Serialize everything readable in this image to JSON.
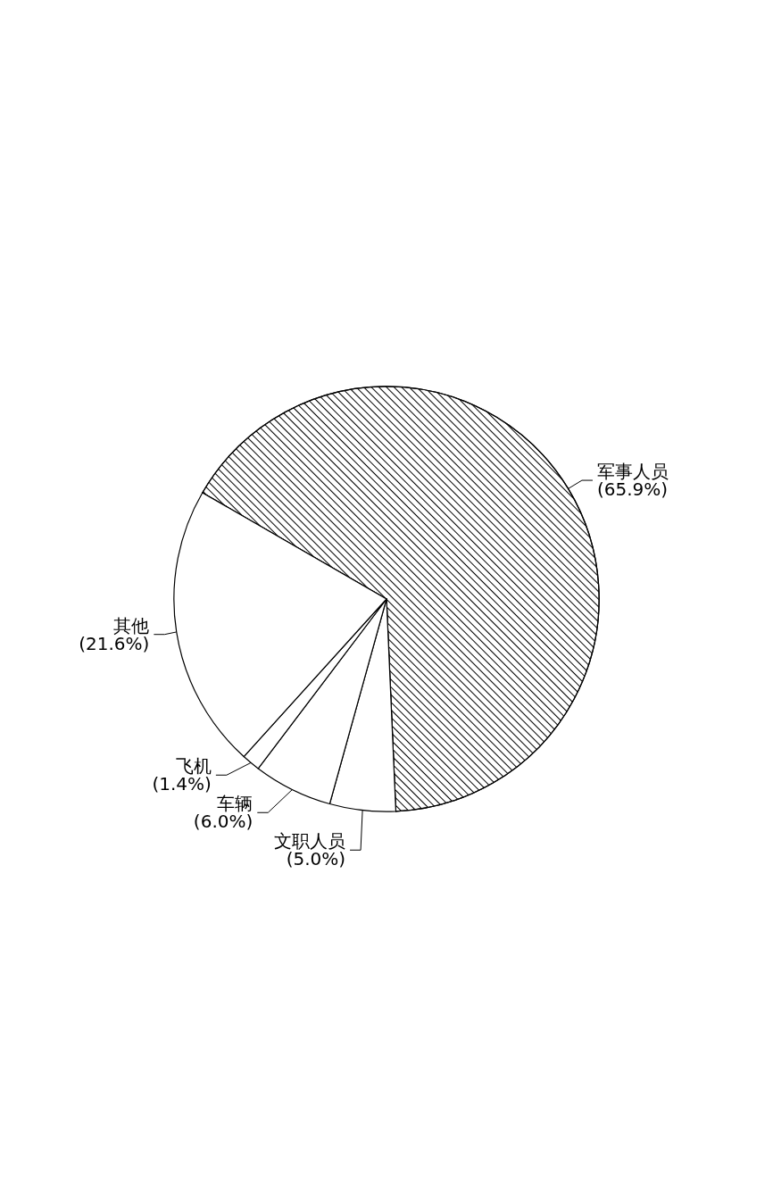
{
  "chart_data": {
    "type": "pie",
    "categories": [
      "军事人员",
      "文职人员",
      "车辆",
      "飞机",
      "其他"
    ],
    "values": [
      65.9,
      5.0,
      6.0,
      1.4,
      21.6
    ],
    "value_labels": [
      "(65.9%)",
      "(5.0%)",
      "(6.0%)",
      "(1.4%)",
      "(21.6%)"
    ],
    "colors": [
      "#000000",
      "#ffffff",
      "#ffffff",
      "#ffffff",
      "#ffffff"
    ]
  }
}
